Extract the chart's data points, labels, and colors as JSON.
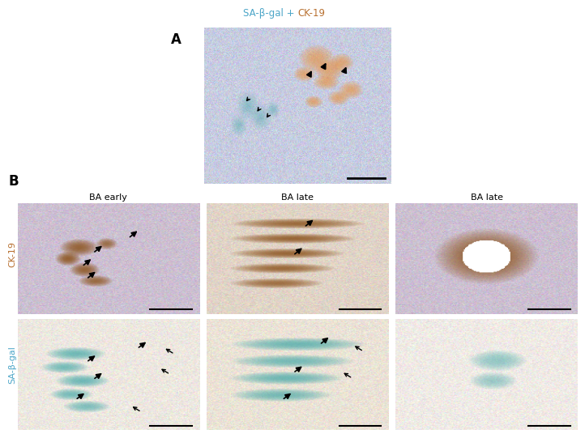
{
  "title_A_label": "A",
  "title_B_label": "B",
  "legend_text_blue": "SA-β-gal",
  "legend_plus": " + ",
  "legend_text_brown": "CK-19",
  "col_labels": [
    "BA early",
    "BA late",
    "BA late"
  ],
  "row_label_top": "CK-19",
  "row_label_bottom": "SA-β-gal",
  "bg_color": "#ffffff",
  "blue_color": "#4da6c8",
  "brown_color": "#b87030",
  "label_color_ck19": "#b87030",
  "label_color_sa": "#4da6c8"
}
